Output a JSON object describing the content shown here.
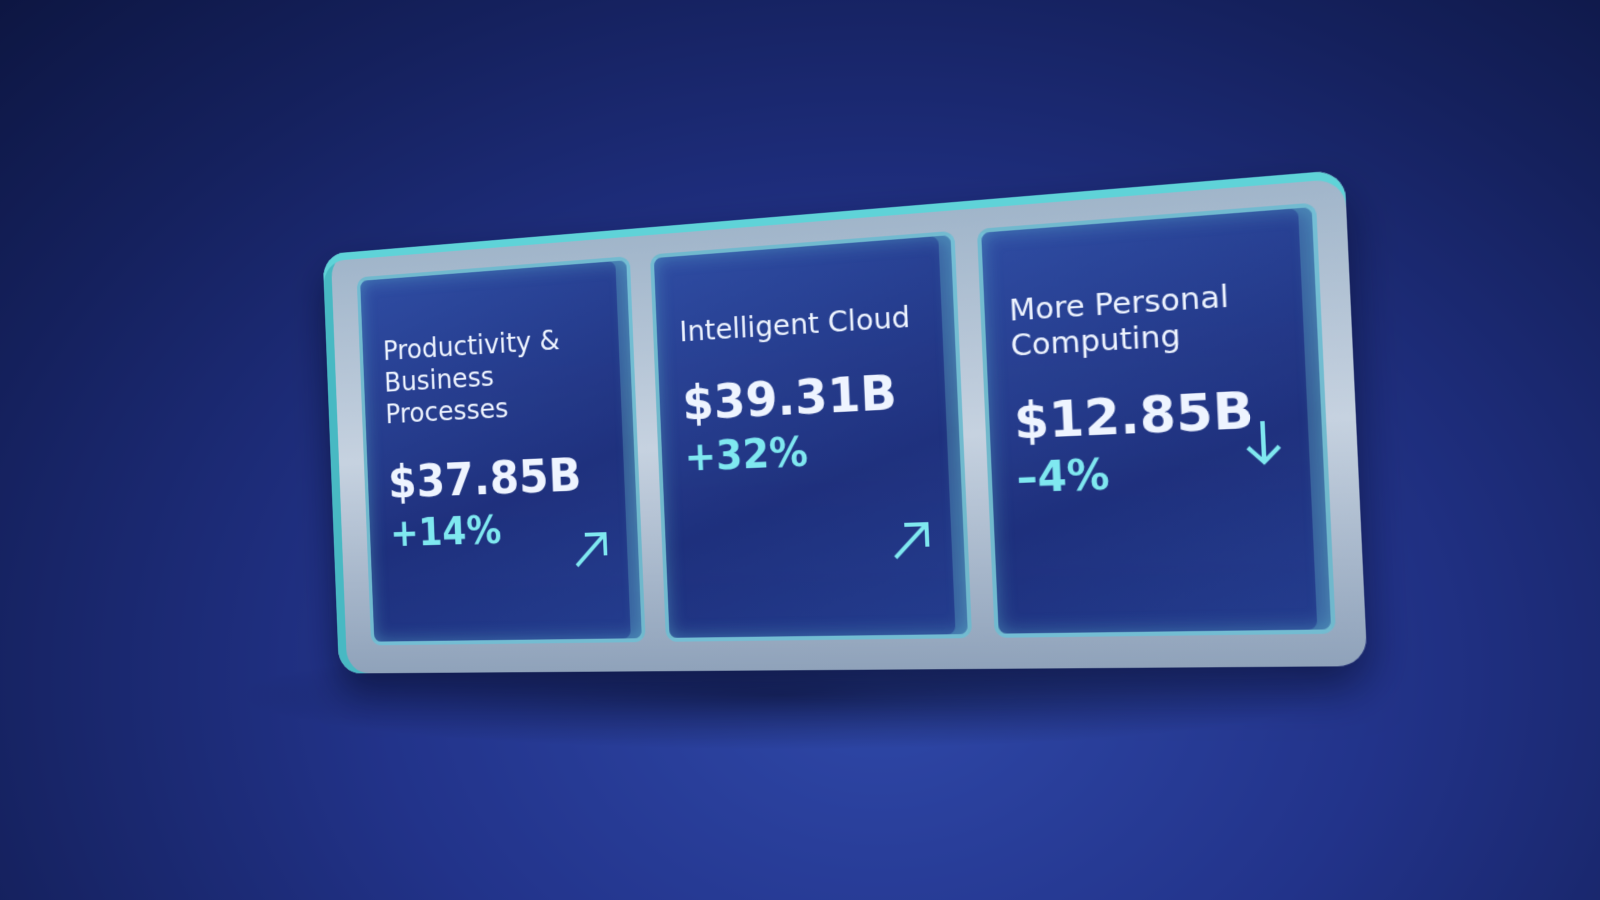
{
  "cards": [
    {
      "title": "Productivity & Business Processes",
      "value": "$37.85B",
      "change": "+14%"
    },
    {
      "title": "Intelligent Cloud",
      "value": "$39.31B",
      "change": "+32%"
    },
    {
      "title": "More Personal Computing",
      "value": "$12.85B",
      "change": "–4%"
    }
  ]
}
